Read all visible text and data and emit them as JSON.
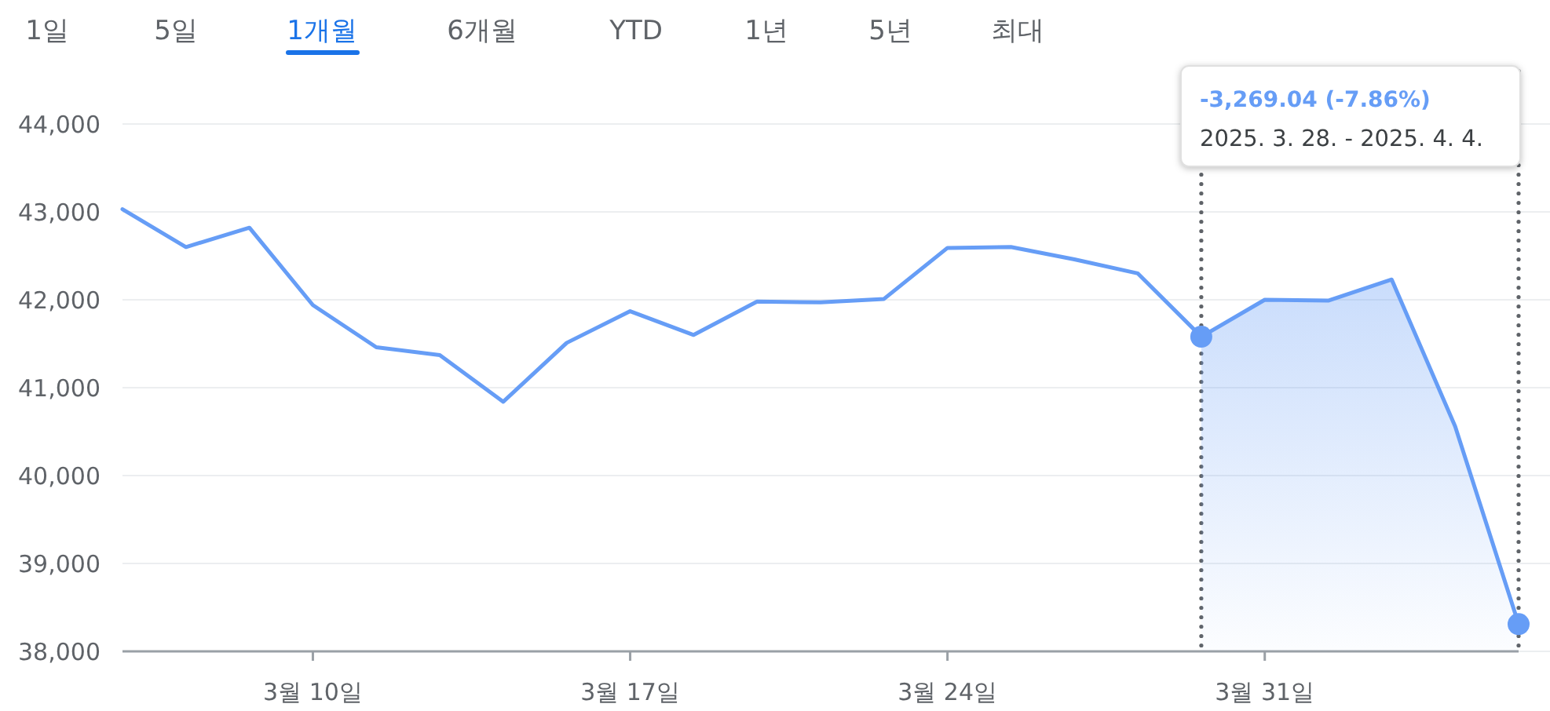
{
  "chart_data": {
    "type": "line",
    "categories": [
      null,
      null,
      null,
      "3월 10일",
      null,
      null,
      null,
      null,
      "3월 17일",
      null,
      null,
      null,
      null,
      "3월 24일",
      null,
      null,
      null,
      null,
      "3월 31일",
      null,
      null,
      null,
      null
    ],
    "series": [
      {
        "color": "#669df6",
        "values": [
          43030,
          42600,
          42820,
          41940,
          41460,
          41370,
          40840,
          41510,
          41870,
          41600,
          41980,
          41970,
          42010,
          42590,
          42600,
          42460,
          42300,
          41580,
          42000,
          41990,
          42230,
          40560,
          38310
        ]
      },
      {
        "type": "area",
        "color": "#669df6",
        "values": [
          null,
          null,
          null,
          null,
          null,
          null,
          null,
          null,
          null,
          null,
          null,
          null,
          null,
          null,
          null,
          null,
          null,
          41580,
          42000,
          41990,
          42230,
          40560,
          38310
        ]
      },
      {
        "type": "scatter",
        "color": "#669df6",
        "marker": "circle",
        "values": [
          null,
          null,
          null,
          null,
          null,
          null,
          null,
          null,
          null,
          null,
          null,
          null,
          null,
          null,
          null,
          null,
          null,
          41580,
          null,
          null,
          null,
          null,
          38310
        ]
      }
    ],
    "ylim": [
      38000,
      44000
    ],
    "yticks": [
      {
        "value": 38000,
        "label": "38,000"
      },
      {
        "value": 39000,
        "label": "39,000"
      },
      {
        "value": 40000,
        "label": "40,000"
      },
      {
        "value": 41000,
        "label": "41,000"
      },
      {
        "value": 42000,
        "label": "42,000"
      },
      {
        "value": 43000,
        "label": "43,000"
      },
      {
        "value": 44000,
        "label": "44,000"
      }
    ],
    "grid": "y",
    "annotations": [
      "1일",
      "5일",
      "1개월",
      "6개월",
      "YTD",
      "1년",
      "5년",
      "최대",
      "-3,269.04 (-7.86%)",
      "2025. 3. 28. - 2025. 4. 4."
    ]
  }
}
